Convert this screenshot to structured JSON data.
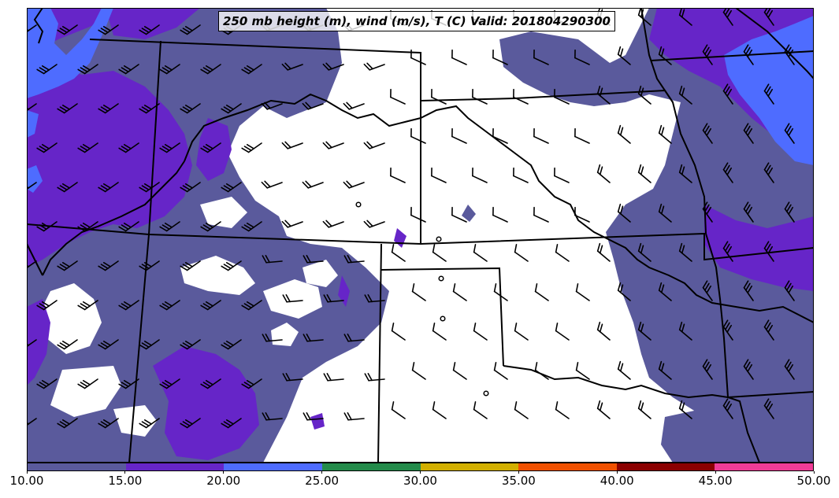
{
  "title": "250 mb height (m), wind (m/s), T (C) Valid: 201804290300",
  "colorbar": {
    "ticks": [
      "10.00",
      "15.00",
      "20.00",
      "25.00",
      "30.00",
      "35.00",
      "40.00",
      "45.00",
      "50.00"
    ],
    "colors": [
      "#5a5a9c",
      "#6625c8",
      "#4e6cff",
      "#238b4a",
      "#d2af00",
      "#f05000",
      "#8b0000",
      "#f03c96"
    ]
  },
  "shading": {
    "speed_10_15": "#5a5a9c",
    "speed_15_20": "#6625c8",
    "speed_20_25": "#4e6cff"
  },
  "chart_data": {
    "type": "heatmap",
    "title": "250 mb height (m), wind (m/s), T (C) Valid: 201804290300",
    "colorbar_range": [
      10,
      50
    ],
    "colorbar_step": 5,
    "colorbar_ticks": [
      10,
      15,
      20,
      25,
      30,
      35,
      40,
      45,
      50
    ]
  }
}
